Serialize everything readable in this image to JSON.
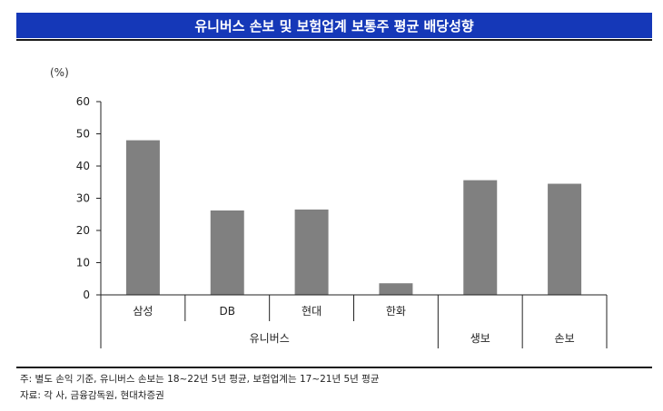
{
  "title": "유니버스 손보 및 보험업계 보통주 평균 배당성향",
  "unit_label": "(%)",
  "chart_data": {
    "type": "bar",
    "categories": [
      "삼성",
      "DB",
      "현대",
      "한화",
      "생보",
      "손보"
    ],
    "values": [
      48,
      26.2,
      26.5,
      3.6,
      35.6,
      34.5
    ],
    "ylim": [
      0,
      60
    ],
    "yticks": [
      0,
      10,
      20,
      30,
      40,
      50,
      60
    ],
    "group_label": "유니버스",
    "bar_color": "#808080",
    "grid": false
  },
  "notes": {
    "note": "주: 별도 손익 기준, 유니버스 손보는 18~22년 5년 평균, 보험업계는 17~21년 5년 평균",
    "source": "자료: 각 사, 금융감독원, 현대차증권"
  }
}
